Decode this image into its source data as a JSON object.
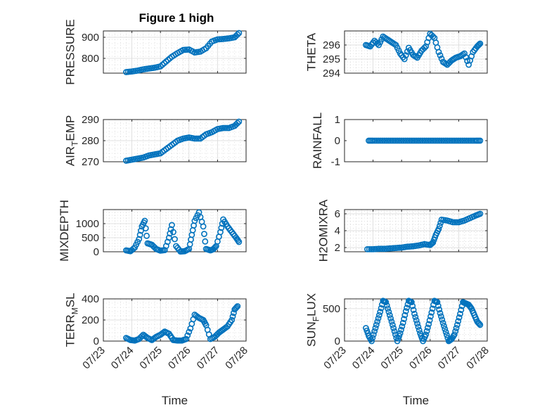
{
  "figure": {
    "title": "Figure 1 high",
    "marker_color": "#0072BD",
    "axis_color": "#262626"
  },
  "chart_data": [
    {
      "type": "scatter",
      "ylabel": "PRESSURE",
      "title": "Figure 1 high",
      "ylim": [
        730,
        930
      ],
      "yticks": [
        800,
        900
      ],
      "xlim": [
        "07/23",
        "07/28"
      ],
      "xticks": [
        "07/23",
        "07/24",
        "07/25",
        "07/26",
        "07/27",
        "07/28"
      ],
      "show_xticklabels": false,
      "grid": true,
      "x": [
        0.8,
        1.0,
        1.2,
        1.4,
        1.6,
        1.8,
        2.0,
        2.2,
        2.4,
        2.6,
        2.8,
        3.0,
        3.2,
        3.4,
        3.6,
        3.8,
        4.0,
        4.2,
        4.4,
        4.6,
        4.75
      ],
      "y": [
        735,
        738,
        742,
        748,
        752,
        756,
        762,
        785,
        808,
        825,
        840,
        842,
        828,
        832,
        848,
        880,
        890,
        892,
        895,
        900,
        920
      ]
    },
    {
      "type": "scatter",
      "ylabel": "THETA",
      "ylim": [
        294,
        297
      ],
      "yticks": [
        294,
        295,
        296
      ],
      "xlim": [
        "07/23",
        "07/28"
      ],
      "xticks": [
        "07/23",
        "07/24",
        "07/25",
        "07/26",
        "07/27",
        "07/28"
      ],
      "show_xticklabels": false,
      "grid": true,
      "x": [
        0.75,
        0.9,
        1.05,
        1.2,
        1.35,
        1.5,
        1.65,
        1.8,
        1.95,
        2.1,
        2.25,
        2.4,
        2.55,
        2.7,
        2.85,
        3.0,
        3.15,
        3.3,
        3.45,
        3.6,
        3.75,
        3.9,
        4.05,
        4.2,
        4.35,
        4.5,
        4.65,
        4.75
      ],
      "y": [
        296.0,
        295.9,
        296.3,
        296.0,
        296.6,
        296.4,
        296.2,
        296.0,
        295.4,
        295.0,
        295.8,
        295.3,
        295.1,
        295.6,
        295.9,
        296.8,
        296.5,
        295.5,
        294.8,
        294.6,
        294.9,
        295.1,
        295.2,
        295.4,
        294.6,
        295.5,
        295.9,
        296.1
      ]
    },
    {
      "type": "scatter",
      "ylabel": "AIR_TEMP",
      "ylim": [
        270,
        290
      ],
      "yticks": [
        270,
        280,
        290
      ],
      "xlim": [
        "07/23",
        "07/28"
      ],
      "xticks": [
        "07/23",
        "07/24",
        "07/25",
        "07/26",
        "07/27",
        "07/28"
      ],
      "show_xticklabels": false,
      "grid": true,
      "x": [
        0.8,
        1.0,
        1.2,
        1.4,
        1.6,
        1.8,
        2.0,
        2.2,
        2.4,
        2.6,
        2.8,
        3.0,
        3.2,
        3.4,
        3.6,
        3.8,
        4.0,
        4.2,
        4.4,
        4.6,
        4.75
      ],
      "y": [
        270.5,
        271,
        271.5,
        272,
        273,
        273.5,
        274,
        276,
        278,
        280,
        281,
        281.5,
        281,
        281,
        283,
        284,
        285.5,
        286,
        286,
        287,
        289
      ]
    },
    {
      "type": "scatter",
      "ylabel": "RAINFALL",
      "ylim": [
        -1,
        1
      ],
      "yticks": [
        -1,
        0,
        1
      ],
      "xlim": [
        "07/23",
        "07/28"
      ],
      "xticks": [
        "07/23",
        "07/24",
        "07/25",
        "07/26",
        "07/27",
        "07/28"
      ],
      "show_xticklabels": false,
      "grid": false,
      "x": [
        0.85,
        1.0,
        1.2,
        1.4,
        1.6,
        1.8,
        2.0,
        2.2,
        2.4,
        2.6,
        2.8,
        3.0,
        3.2,
        3.4,
        3.6,
        3.8,
        4.0,
        4.2,
        4.4,
        4.6,
        4.75
      ],
      "y": [
        0,
        0,
        0,
        0,
        0,
        0,
        0,
        0,
        0,
        0,
        0,
        0,
        0,
        0,
        0,
        0,
        0,
        0,
        0,
        0,
        0
      ]
    },
    {
      "type": "scatter",
      "ylabel": "MIXDEPTH",
      "ylim": [
        0,
        1500
      ],
      "yticks": [
        0,
        500,
        1000
      ],
      "xlim": [
        "07/23",
        "07/28"
      ],
      "xticks": [
        "07/23",
        "07/24",
        "07/25",
        "07/26",
        "07/27",
        "07/28"
      ],
      "show_xticklabels": false,
      "grid": true,
      "x": [
        0.8,
        0.95,
        1.1,
        1.25,
        1.35,
        1.45,
        1.55,
        1.7,
        1.85,
        2.0,
        2.15,
        2.3,
        2.4,
        2.55,
        2.7,
        2.85,
        3.0,
        3.1,
        3.2,
        3.35,
        3.5,
        3.6,
        3.75,
        3.85,
        3.95,
        4.1,
        4.2,
        4.35,
        4.5,
        4.65,
        4.75
      ],
      "y": [
        50,
        20,
        150,
        450,
        900,
        1100,
        300,
        250,
        100,
        40,
        60,
        500,
        950,
        200,
        10,
        20,
        100,
        600,
        1100,
        1400,
        900,
        100,
        50,
        90,
        200,
        700,
        1150,
        900,
        700,
        500,
        350
      ]
    },
    {
      "type": "scatter",
      "ylabel": "H2OMIXRA",
      "ylim": [
        1.5,
        6.5
      ],
      "yticks": [
        2,
        4,
        6
      ],
      "xlim": [
        "07/23",
        "07/28"
      ],
      "xticks": [
        "07/23",
        "07/24",
        "07/25",
        "07/26",
        "07/27",
        "07/28"
      ],
      "show_xticklabels": false,
      "grid": true,
      "x": [
        0.8,
        1.0,
        1.2,
        1.4,
        1.6,
        1.8,
        2.0,
        2.2,
        2.4,
        2.6,
        2.8,
        3.0,
        3.1,
        3.2,
        3.3,
        3.4,
        3.6,
        3.8,
        4.0,
        4.2,
        4.4,
        4.6,
        4.75
      ],
      "y": [
        1.8,
        1.8,
        1.85,
        1.85,
        1.9,
        1.95,
        2.0,
        2.1,
        2.15,
        2.25,
        2.4,
        2.3,
        2.6,
        3.5,
        4.2,
        5.3,
        5.2,
        5.0,
        5.0,
        5.2,
        5.5,
        5.8,
        6.0
      ]
    },
    {
      "type": "scatter",
      "ylabel": "TERR_MSL",
      "ylim": [
        0,
        400
      ],
      "yticks": [
        0,
        200,
        400
      ],
      "xlim": [
        "07/23",
        "07/28"
      ],
      "xticks": [
        "07/23",
        "07/24",
        "07/25",
        "07/26",
        "07/27",
        "07/28"
      ],
      "show_xticklabels": true,
      "xlabel": "Time",
      "grid": true,
      "x": [
        0.8,
        0.95,
        1.1,
        1.25,
        1.4,
        1.55,
        1.7,
        1.85,
        2.0,
        2.15,
        2.3,
        2.45,
        2.6,
        2.75,
        2.9,
        3.05,
        3.2,
        3.35,
        3.5,
        3.6,
        3.75,
        3.9,
        4.05,
        4.2,
        4.35,
        4.5,
        4.6,
        4.7
      ],
      "y": [
        30,
        10,
        5,
        20,
        60,
        30,
        10,
        40,
        60,
        90,
        70,
        10,
        5,
        5,
        20,
        120,
        250,
        220,
        200,
        150,
        20,
        40,
        80,
        110,
        140,
        200,
        300,
        330
      ]
    },
    {
      "type": "scatter",
      "ylabel": "SUN_FLUX",
      "ylim": [
        0,
        650
      ],
      "yticks": [
        0,
        500
      ],
      "xlim": [
        "07/23",
        "07/28"
      ],
      "xticks": [
        "07/23",
        "07/24",
        "07/25",
        "07/26",
        "07/27",
        "07/28"
      ],
      "show_xticklabels": true,
      "xlabel": "Time",
      "grid": true,
      "x": [
        0.75,
        0.85,
        0.95,
        1.05,
        1.15,
        1.25,
        1.35,
        1.45,
        1.55,
        1.65,
        1.75,
        1.85,
        1.95,
        2.05,
        2.15,
        2.25,
        2.35,
        2.45,
        2.55,
        2.65,
        2.75,
        2.85,
        2.95,
        3.05,
        3.15,
        3.25,
        3.35,
        3.45,
        3.55,
        3.65,
        3.75,
        3.85,
        3.95,
        4.05,
        4.15,
        4.25,
        4.35,
        4.45,
        4.55,
        4.65,
        4.75
      ],
      "y": [
        200,
        80,
        0,
        150,
        300,
        450,
        620,
        600,
        450,
        300,
        150,
        0,
        120,
        280,
        460,
        620,
        600,
        420,
        270,
        120,
        0,
        100,
        260,
        440,
        620,
        600,
        430,
        280,
        140,
        0,
        30,
        100,
        250,
        420,
        600,
        580,
        560,
        500,
        400,
        300,
        250
      ]
    }
  ]
}
